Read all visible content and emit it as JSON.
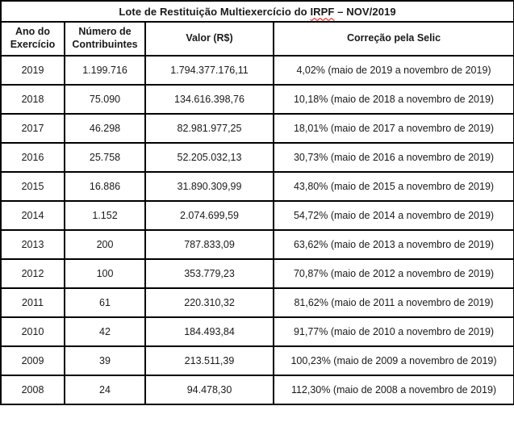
{
  "title": {
    "prefix": "Lote de Restituição Multiexercício do ",
    "misspelled_word": "IRPF",
    "suffix": " – NOV/2019"
  },
  "table": {
    "headers": [
      "Ano do Exercício",
      "Número de Contribuintes",
      "Valor (R$)",
      "Correção pela Selic"
    ],
    "rows": [
      [
        "2019",
        "1.199.716",
        "1.794.377.176,11",
        "4,02% (maio de 2019 a novembro de 2019)"
      ],
      [
        "2018",
        "75.090",
        "134.616.398,76",
        "10,18% (maio de 2018 a novembro de 2019)"
      ],
      [
        "2017",
        "46.298",
        "82.981.977,25",
        "18,01% (maio de 2017 a novembro de 2019)"
      ],
      [
        "2016",
        "25.758",
        "52.205.032,13",
        "30,73% (maio de 2016 a novembro de 2019)"
      ],
      [
        "2015",
        "16.886",
        "31.890.309,99",
        "43,80% (maio de 2015 a novembro de 2019)"
      ],
      [
        "2014",
        "1.152",
        "2.074.699,59",
        "54,72% (maio de 2014 a novembro de 2019)"
      ],
      [
        "2013",
        "200",
        "787.833,09",
        "63,62% (maio de 2013 a novembro de 2019)"
      ],
      [
        "2012",
        "100",
        "353.779,23",
        "70,87% (maio de 2012 a novembro de 2019)"
      ],
      [
        "2011",
        "61",
        "220.310,32",
        "81,62% (maio de 2011 a novembro de 2019)"
      ],
      [
        "2010",
        "42",
        "184.493,84",
        "91,77% (maio de 2010 a novembro de 2019)"
      ],
      [
        "2009",
        "39",
        "213.511,39",
        "100,23% (maio de 2009 a novembro de 2019)"
      ],
      [
        "2008",
        "24",
        "94.478,30",
        "112,30% (maio de 2008 a novembro de 2019)"
      ]
    ]
  },
  "colors": {
    "border": "#000000",
    "text": "#1a1a1a",
    "spellcheck_underline": "#ff0000",
    "background": "#ffffff"
  }
}
